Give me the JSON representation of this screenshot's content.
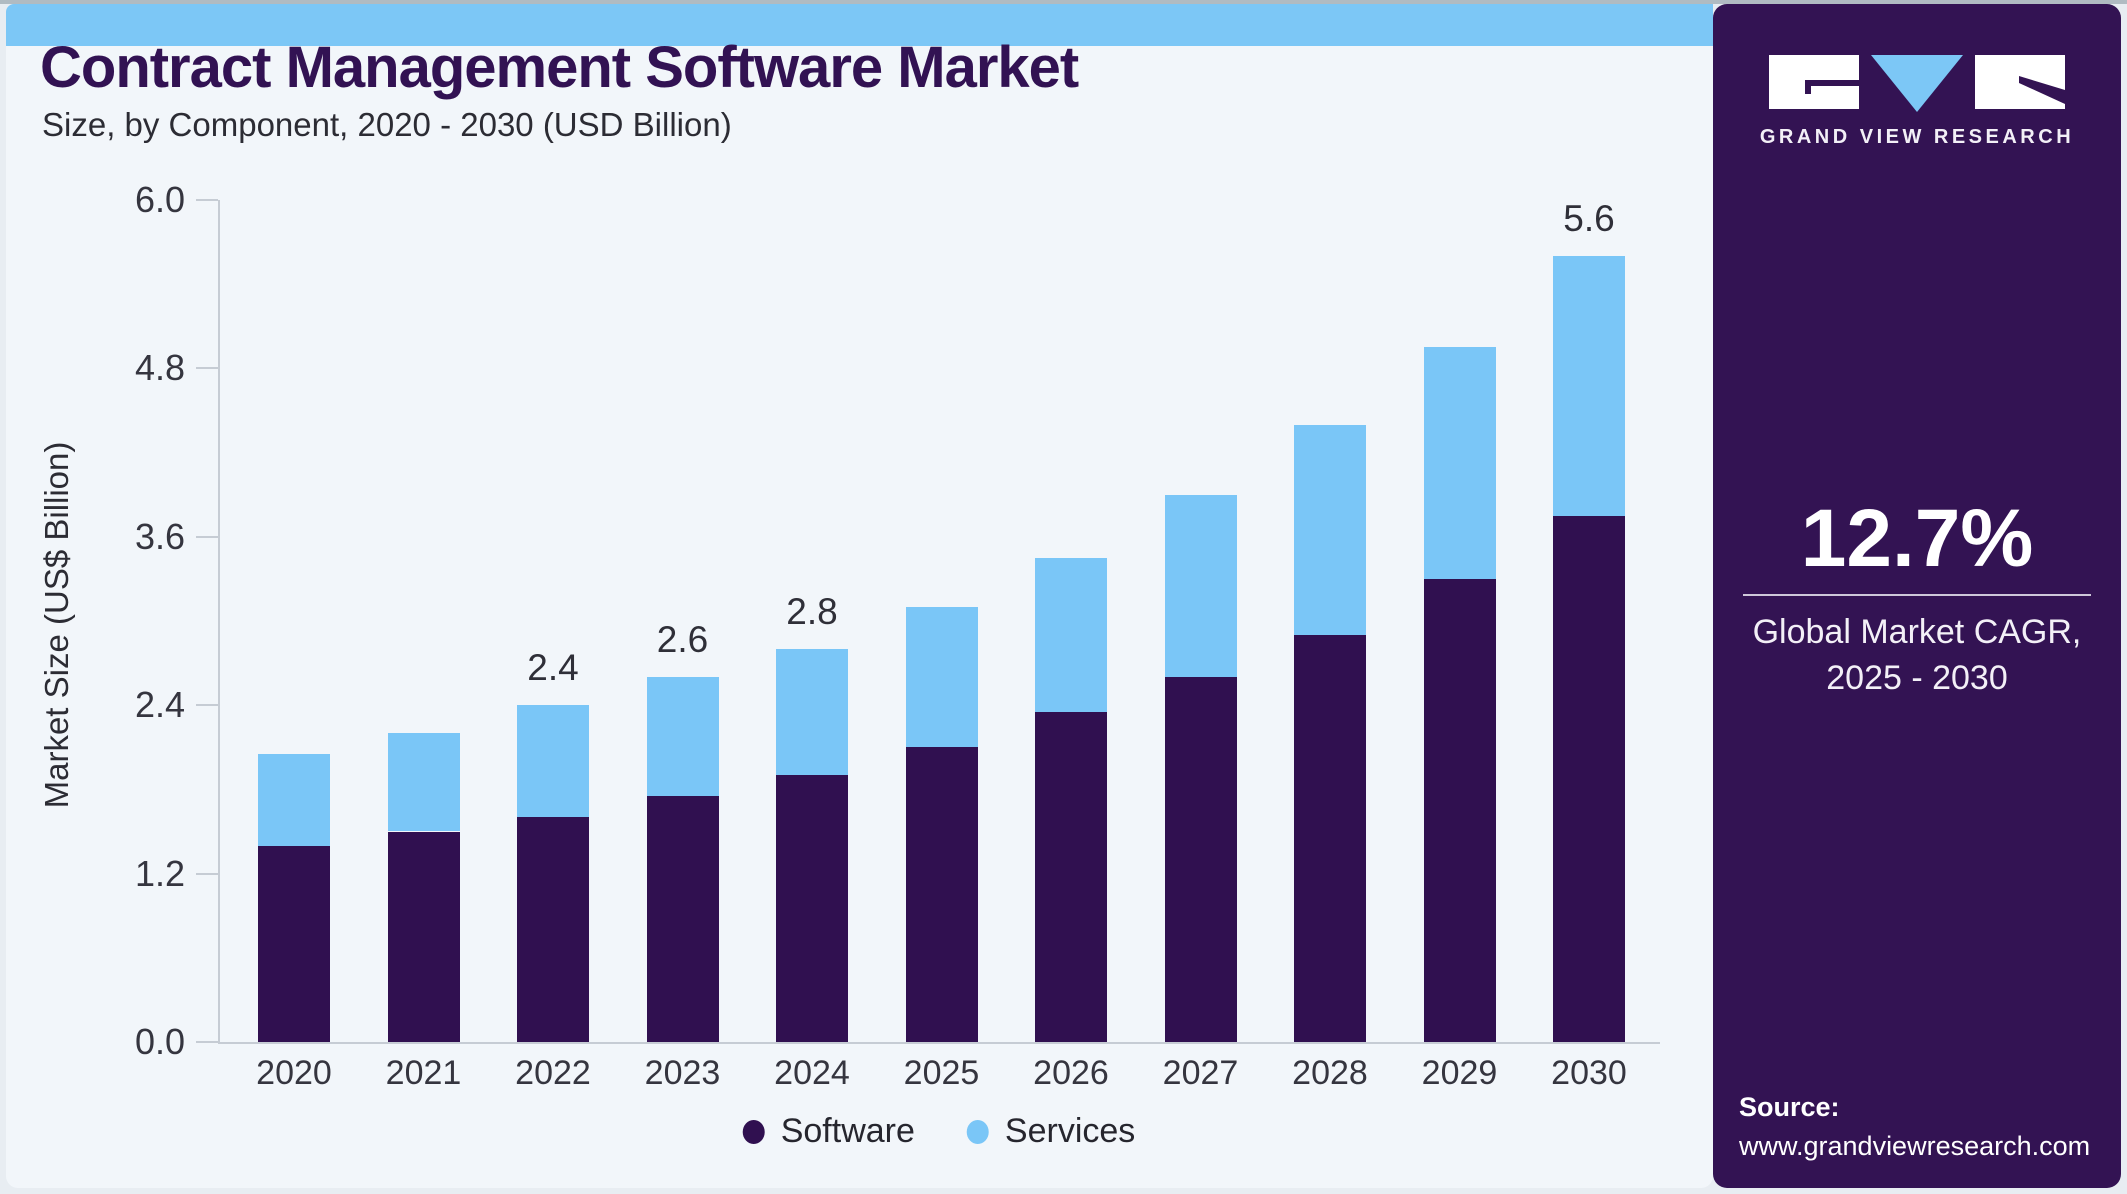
{
  "header": {
    "title": "Contract Management Software Market",
    "subtitle": "Size, by Component, 2020 - 2030 (USD Billion)"
  },
  "chart_data": {
    "type": "bar",
    "stacked": true,
    "title": "Contract Management Software Market Size, by Component, 2020 - 2030 (USD Billion)",
    "categories": [
      "2020",
      "2021",
      "2022",
      "2023",
      "2024",
      "2025",
      "2026",
      "2027",
      "2028",
      "2029",
      "2030"
    ],
    "series": [
      {
        "name": "Software",
        "color": "#301050",
        "values": [
          1.4,
          1.5,
          1.6,
          1.75,
          1.9,
          2.1,
          2.35,
          2.6,
          2.9,
          3.3,
          3.75
        ]
      },
      {
        "name": "Services",
        "color": "#7ac6f7",
        "values": [
          0.65,
          0.7,
          0.8,
          0.85,
          0.9,
          1.0,
          1.1,
          1.3,
          1.5,
          1.65,
          1.85
        ]
      }
    ],
    "totals": [
      2.05,
      2.2,
      2.4,
      2.6,
      2.8,
      3.1,
      3.45,
      3.9,
      4.4,
      4.95,
      5.6
    ],
    "total_labels": {
      "2022": "2.4",
      "2023": "2.6",
      "2024": "2.8",
      "2030": "5.6"
    },
    "xlabel": "",
    "ylabel": "Market Size (US$ Billion)",
    "yticks": [
      0.0,
      1.2,
      2.4,
      3.6,
      4.8,
      6.0
    ],
    "ylim": [
      0,
      6.0
    ],
    "grid": false,
    "legend_position": "bottom"
  },
  "sidebar": {
    "brand": "GRAND VIEW RESEARCH",
    "cagr_value": "12.7%",
    "cagr_label_line1": "Global Market CAGR,",
    "cagr_label_line2": "2025 - 2030",
    "source_label": "Source:",
    "source_url": "www.grandviewresearch.com"
  },
  "colors": {
    "software_bar": "#301050",
    "services_bar": "#7ac6f7",
    "sidebar_bg": "#331353",
    "top_strip": "#7cc7f6",
    "card_bg": "#f2f6fa",
    "title_text": "#321253",
    "axis_line": "#c6ccd4"
  }
}
